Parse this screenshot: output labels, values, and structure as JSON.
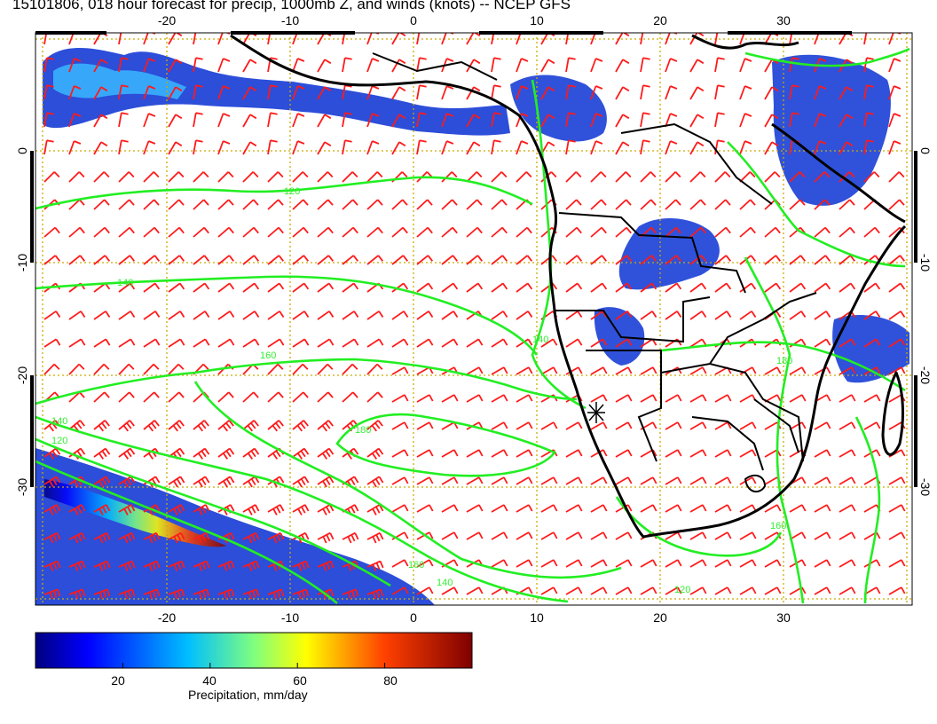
{
  "title": "15101806, 018 hour forecast for precip, 1000mb Z, and winds (knots) -- NCEP GFS",
  "colors": {
    "contour": "#22ee22",
    "barb": "#ff1a1a",
    "grid": "#ccaa00",
    "land": "#000000"
  },
  "map": {
    "lon_range": [
      -30,
      40
    ],
    "lat_range": [
      -40,
      10
    ],
    "lon_ticks_bottom": [
      "-20",
      "-10",
      "0",
      "10",
      "20",
      "30"
    ],
    "lon_ticks_top": [
      "-20",
      "-10",
      "0",
      "10",
      "20",
      "30"
    ],
    "lat_ticks_left": [
      "0",
      "-10",
      "-20",
      "-30"
    ],
    "lat_ticks_right": [
      "0",
      "-10",
      "-20",
      "-30"
    ],
    "contour_labels": [
      "120",
      "140",
      "160",
      "180",
      "140",
      "120",
      "140",
      "160",
      "180",
      "160",
      "140",
      "120"
    ]
  },
  "colorbar": {
    "label": "Precipitation, mm/day",
    "ticks": [
      "20",
      "40",
      "60",
      "80"
    ],
    "range": [
      0,
      100
    ],
    "tick_values": [
      20,
      40,
      60,
      80
    ]
  }
}
